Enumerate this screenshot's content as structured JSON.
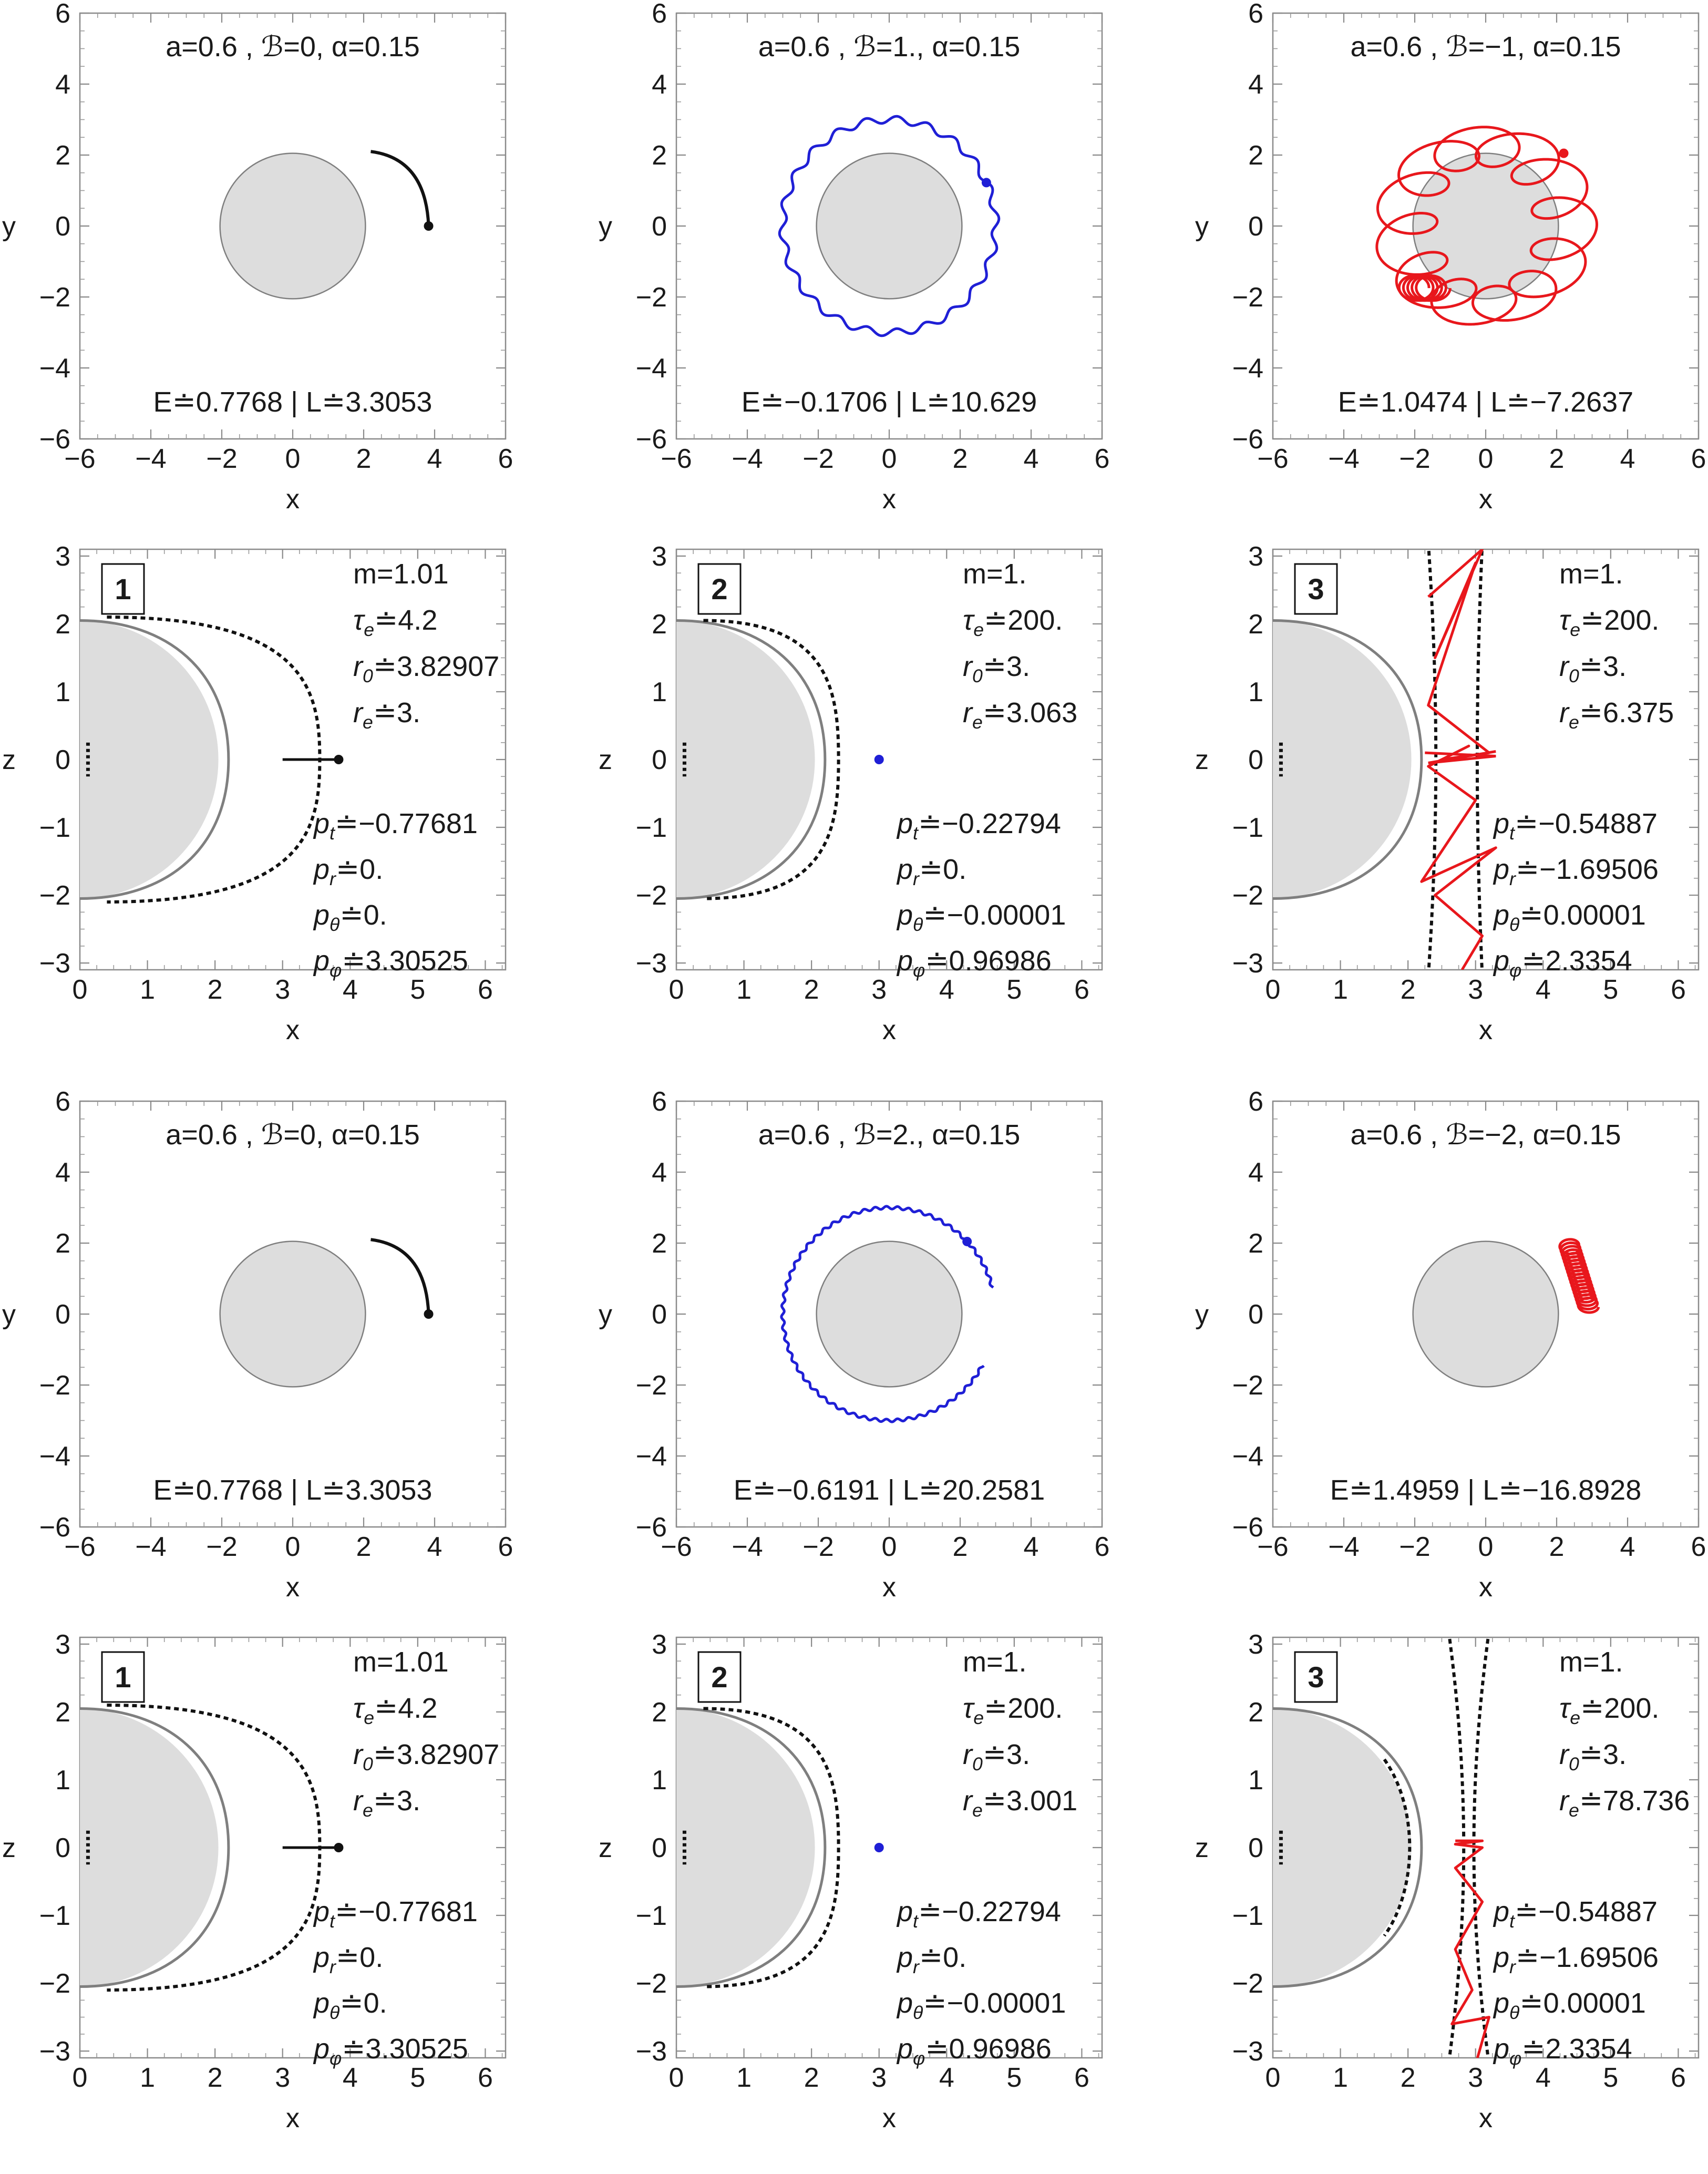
{
  "colors": {
    "black": "#111111",
    "blue": "#1f1fd6",
    "red": "#e8171c",
    "disk_fill": "#dddddd",
    "disk_edge": "#7f7f7f"
  },
  "chart_data": [
    {
      "type": "line",
      "kind": "xy",
      "row": 0,
      "col": 0,
      "title": "a=0.6 , ℬ=0, α=0.15",
      "xlabel": "x",
      "ylabel": "y",
      "xlim": [
        -6,
        6
      ],
      "ylim": [
        -6,
        6
      ],
      "xticks": [
        "−6",
        "−4",
        "−2",
        "0",
        "2",
        "4",
        "6"
      ],
      "yticks": [
        "−6",
        "−4",
        "−2",
        "0",
        "2",
        "4",
        "6"
      ],
      "bottom_text": "E≐0.7768 | L≐3.3053",
      "color": "black",
      "style": "arc",
      "disk_radius": 2.05,
      "series": [
        {
          "x": [
            3.83,
            3.55,
            2.2
          ],
          "y": [
            0.0,
            1.2,
            2.1
          ]
        }
      ]
    },
    {
      "type": "line",
      "kind": "xy",
      "row": 0,
      "col": 1,
      "title": "a=0.6 , ℬ=1., α=0.15",
      "xlabel": "x",
      "ylabel": "y",
      "xlim": [
        -6,
        6
      ],
      "ylim": [
        -6,
        6
      ],
      "xticks": [
        "−6",
        "−4",
        "−2",
        "0",
        "2",
        "4",
        "6"
      ],
      "yticks": [
        "−6",
        "−4",
        "−2",
        "0",
        "2",
        "4",
        "6"
      ],
      "bottom_text": "E≐−0.1706 | L≐10.629",
      "color": "blue",
      "style": "wavy_ring",
      "disk_radius": 2.05,
      "ring_radius": 3.0,
      "ring_amp": 0.1,
      "ring_waves": 22
    },
    {
      "type": "line",
      "kind": "xy",
      "row": 0,
      "col": 2,
      "title": "a=0.6 , ℬ=−1, α=0.15",
      "xlabel": "x",
      "ylabel": "y",
      "xlim": [
        -6,
        6
      ],
      "ylim": [
        -6,
        6
      ],
      "xticks": [
        "−6",
        "−4",
        "−2",
        "0",
        "2",
        "4",
        "6"
      ],
      "yticks": [
        "−6",
        "−4",
        "−2",
        "0",
        "2",
        "4",
        "6"
      ],
      "bottom_text": "E≐1.0474 | L≐−7.2637",
      "color": "red",
      "style": "loop_ring",
      "disk_radius": 2.05,
      "ring_radius": 2.25,
      "loop_radius": 0.55,
      "loops": 12
    },
    {
      "type": "line",
      "kind": "xz",
      "row": 1,
      "col": 0,
      "badge": "1",
      "xlabel": "x",
      "ylabel": "z",
      "xlim": [
        0,
        6.3
      ],
      "ylim": [
        -3.1,
        3.1
      ],
      "xticks": [
        "0",
        "1",
        "2",
        "3",
        "4",
        "5",
        "6"
      ],
      "yticks": [
        "−3",
        "−2",
        "−1",
        "0",
        "1",
        "2",
        "3"
      ],
      "params": [
        "m=1.01",
        "τe≐4.2",
        "r0≐3.82907",
        "re≐3."
      ],
      "momenta": [
        "pt≐−0.77681",
        "pr≐0.",
        "pθ≐0.",
        "pφ≐3.30525"
      ],
      "color": "black",
      "style": "segment",
      "boundary_radius": 3.55,
      "series": [
        {
          "x": [
            3.0,
            3.83
          ],
          "y": [
            0,
            0
          ]
        }
      ]
    },
    {
      "type": "line",
      "kind": "xz",
      "row": 1,
      "col": 1,
      "badge": "2",
      "xlabel": "x",
      "ylabel": "z",
      "xlim": [
        0,
        6.3
      ],
      "ylim": [
        -3.1,
        3.1
      ],
      "xticks": [
        "0",
        "1",
        "2",
        "3",
        "4",
        "5",
        "6"
      ],
      "yticks": [
        "−3",
        "−2",
        "−1",
        "0",
        "1",
        "2",
        "3"
      ],
      "params": [
        "m=1.",
        "τe≐200.",
        "r0≐3.",
        "re≐3.063"
      ],
      "momenta": [
        "pt≐−0.22794",
        "pr≐0.",
        "pθ≐−0.00001",
        "pφ≐0.96986"
      ],
      "color": "blue",
      "style": "point",
      "boundary_radius": 2.4,
      "series": [
        {
          "x": [
            3.0
          ],
          "y": [
            0.0
          ]
        }
      ]
    },
    {
      "type": "line",
      "kind": "xz",
      "row": 1,
      "col": 2,
      "badge": "3",
      "xlabel": "x",
      "ylabel": "z",
      "xlim": [
        0,
        6.3
      ],
      "ylim": [
        -3.1,
        3.1
      ],
      "xticks": [
        "0",
        "1",
        "2",
        "3",
        "4",
        "5",
        "6"
      ],
      "yticks": [
        "−3",
        "−2",
        "−1",
        "0",
        "1",
        "2",
        "3"
      ],
      "params": [
        "m=1.",
        "τe≐200.",
        "r0≐3.",
        "re≐6.375"
      ],
      "momenta": [
        "pt≐−0.54887",
        "pr≐−1.69506",
        "pθ≐0.00001",
        "pφ≐2.3354"
      ],
      "color": "red",
      "style": "zigzag",
      "boundary_radius": 2.2,
      "band": [
        2.3,
        3.1
      ],
      "zigzag_x": [
        2.3,
        3.1,
        2.4,
        3.0,
        2.3,
        3.2,
        2.5,
        2.9,
        2.3,
        3.0,
        2.2,
        3.3,
        2.4,
        3.1,
        2.8
      ],
      "zigzag_y": [
        2.4,
        3.1,
        1.5,
        2.9,
        0.8,
        0.1,
        0.0,
        0.2,
        -0.1,
        -0.6,
        -1.8,
        -1.3,
        -2.0,
        -2.6,
        -3.1
      ]
    },
    {
      "type": "line",
      "kind": "xy",
      "row": 2,
      "col": 0,
      "title": "a=0.6 , ℬ=0, α=0.15",
      "xlabel": "x",
      "ylabel": "y",
      "xlim": [
        -6,
        6
      ],
      "ylim": [
        -6,
        6
      ],
      "xticks": [
        "−6",
        "−4",
        "−2",
        "0",
        "2",
        "4",
        "6"
      ],
      "yticks": [
        "−6",
        "−4",
        "−2",
        "0",
        "2",
        "4",
        "6"
      ],
      "bottom_text": "E≐0.7768 | L≐3.3053",
      "color": "black",
      "style": "arc",
      "disk_radius": 2.05,
      "series": [
        {
          "x": [
            3.83,
            3.55,
            2.2
          ],
          "y": [
            0.0,
            1.2,
            2.1
          ]
        }
      ]
    },
    {
      "type": "line",
      "kind": "xy",
      "row": 2,
      "col": 1,
      "title": "a=0.6 , ℬ=2., α=0.15",
      "xlabel": "x",
      "ylabel": "y",
      "xlim": [
        -6,
        6
      ],
      "ylim": [
        -6,
        6
      ],
      "xticks": [
        "−6",
        "−4",
        "−2",
        "0",
        "2",
        "4",
        "6"
      ],
      "yticks": [
        "−6",
        "−4",
        "−2",
        "0",
        "2",
        "4",
        "6"
      ],
      "bottom_text": "E≐−0.6191 | L≐20.2581",
      "color": "blue",
      "style": "open_ring",
      "disk_radius": 2.05,
      "ring_radius": 3.0,
      "ring_amp": 0.04,
      "ring_waves": 60
    },
    {
      "type": "line",
      "kind": "xy",
      "row": 2,
      "col": 2,
      "title": "a=0.6 , ℬ=−2, α=0.15",
      "xlabel": "x",
      "ylabel": "y",
      "xlim": [
        -6,
        6
      ],
      "ylim": [
        -6,
        6
      ],
      "xticks": [
        "−6",
        "−4",
        "−2",
        "0",
        "2",
        "4",
        "6"
      ],
      "yticks": [
        "−6",
        "−4",
        "−2",
        "0",
        "2",
        "4",
        "6"
      ],
      "bottom_text": "E≐1.4959 | L≐−16.8928",
      "color": "red",
      "style": "coil",
      "disk_radius": 2.05
    },
    {
      "type": "line",
      "kind": "xz",
      "row": 3,
      "col": 0,
      "badge": "1",
      "xlabel": "x",
      "ylabel": "z",
      "xlim": [
        0,
        6.3
      ],
      "ylim": [
        -3.1,
        3.1
      ],
      "xticks": [
        "0",
        "1",
        "2",
        "3",
        "4",
        "5",
        "6"
      ],
      "yticks": [
        "−3",
        "−2",
        "−1",
        "0",
        "1",
        "2",
        "3"
      ],
      "params": [
        "m=1.01",
        "τe≐4.2",
        "r0≐3.82907",
        "re≐3."
      ],
      "momenta": [
        "pt≐−0.77681",
        "pr≐0.",
        "pθ≐0.",
        "pφ≐3.30525"
      ],
      "color": "black",
      "style": "segment",
      "boundary_radius": 3.55,
      "series": [
        {
          "x": [
            3.0,
            3.83
          ],
          "y": [
            0,
            0
          ]
        }
      ]
    },
    {
      "type": "line",
      "kind": "xz",
      "row": 3,
      "col": 1,
      "badge": "2",
      "xlabel": "x",
      "ylabel": "z",
      "xlim": [
        0,
        6.3
      ],
      "ylim": [
        -3.1,
        3.1
      ],
      "xticks": [
        "0",
        "1",
        "2",
        "3",
        "4",
        "5",
        "6"
      ],
      "yticks": [
        "−3",
        "−2",
        "−1",
        "0",
        "1",
        "2",
        "3"
      ],
      "params": [
        "m=1.",
        "τe≐200.",
        "r0≐3.",
        "re≐3.001"
      ],
      "momenta": [
        "pt≐−0.22794",
        "pr≐0.",
        "pθ≐−0.00001",
        "pφ≐0.96986"
      ],
      "color": "blue",
      "style": "point",
      "boundary_radius": 2.4,
      "series": [
        {
          "x": [
            3.0
          ],
          "y": [
            0.0
          ]
        }
      ]
    },
    {
      "type": "line",
      "kind": "xz",
      "row": 3,
      "col": 2,
      "badge": "3",
      "xlabel": "x",
      "ylabel": "z",
      "xlim": [
        0,
        6.3
      ],
      "ylim": [
        -3.1,
        3.1
      ],
      "xticks": [
        "0",
        "1",
        "2",
        "3",
        "4",
        "5",
        "6"
      ],
      "yticks": [
        "−3",
        "−2",
        "−1",
        "0",
        "1",
        "2",
        "3"
      ],
      "params": [
        "m=1.",
        "τe≐200.",
        "r0≐3.",
        "re≐78.736"
      ],
      "momenta": [
        "pt≐−0.54887",
        "pr≐−1.69506",
        "pθ≐0.00001",
        "pφ≐2.3354"
      ],
      "color": "red",
      "style": "funnel",
      "boundary_radius": 2.2,
      "band": [
        2.6,
        3.2
      ]
    }
  ]
}
